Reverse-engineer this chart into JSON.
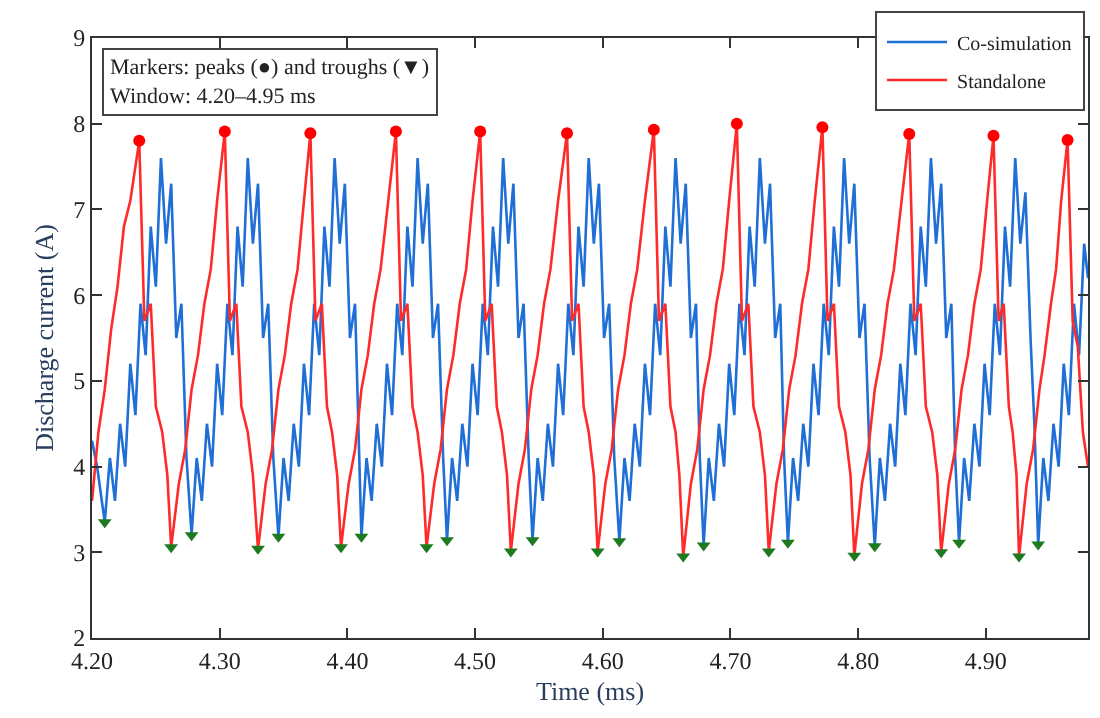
{
  "chart_data": {
    "type": "line",
    "xlabel": "Time (ms)",
    "ylabel": "Discharge current (A)",
    "xlim": [
      4.2,
      4.98
    ],
    "ylim": [
      2,
      9
    ],
    "xticks": [
      {
        "value": 4.2,
        "label": "4.20"
      },
      {
        "value": 4.3,
        "label": "4.30"
      },
      {
        "value": 4.4,
        "label": "4.40"
      },
      {
        "value": 4.5,
        "label": "4.50"
      },
      {
        "value": 4.6,
        "label": "4.60"
      },
      {
        "value": 4.7,
        "label": "4.70"
      },
      {
        "value": 4.8,
        "label": "4.80"
      },
      {
        "value": 4.9,
        "label": "4.90"
      }
    ],
    "yticks": [
      2,
      3,
      4,
      5,
      6,
      7,
      8,
      9
    ],
    "legend": "top right",
    "line_style": "solid",
    "annotations": [
      "Markers: peaks (●) and troughs (▼)",
      "Window: 4.20–4.95 ms"
    ],
    "series": [
      {
        "name": "Co-simulation",
        "color": "#1f6fd6",
        "x": [
          4.2,
          4.204,
          4.21,
          4.214,
          4.218,
          4.222,
          4.226,
          4.23,
          4.234,
          4.238,
          4.242,
          4.246,
          4.25,
          4.254,
          4.258,
          4.262,
          4.266,
          4.27,
          4.274,
          4.278,
          4.282,
          4.286,
          4.29,
          4.294,
          4.298,
          4.302,
          4.306,
          4.31,
          4.314,
          4.318,
          4.322,
          4.326,
          4.33,
          4.334,
          4.338,
          4.342,
          4.346,
          4.35,
          4.354,
          4.358,
          4.362,
          4.366,
          4.37,
          4.374,
          4.378,
          4.382,
          4.386,
          4.39,
          4.394,
          4.398,
          4.402,
          4.406,
          4.411,
          4.415,
          4.419,
          4.423,
          4.427,
          4.431,
          4.435,
          4.439,
          4.443,
          4.447,
          4.451,
          4.455,
          4.459,
          4.463,
          4.467,
          4.471,
          4.475,
          4.478,
          4.482,
          4.486,
          4.49,
          4.494,
          4.498,
          4.502,
          4.506,
          4.51,
          4.514,
          4.518,
          4.522,
          4.526,
          4.53,
          4.534,
          4.538,
          4.542,
          4.545,
          4.549,
          4.553,
          4.557,
          4.561,
          4.565,
          4.569,
          4.573,
          4.577,
          4.581,
          4.585,
          4.589,
          4.593,
          4.597,
          4.601,
          4.605,
          4.609,
          4.613,
          4.617,
          4.621,
          4.625,
          4.629,
          4.633,
          4.637,
          4.641,
          4.645,
          4.649,
          4.653,
          4.657,
          4.661,
          4.665,
          4.669,
          4.673,
          4.676,
          4.679,
          4.683,
          4.687,
          4.691,
          4.695,
          4.699,
          4.703,
          4.707,
          4.711,
          4.715,
          4.719,
          4.723,
          4.727,
          4.731,
          4.735,
          4.739,
          4.742,
          4.745,
          4.749,
          4.753,
          4.757,
          4.761,
          4.765,
          4.769,
          4.773,
          4.777,
          4.781,
          4.785,
          4.789,
          4.793,
          4.797,
          4.801,
          4.805,
          4.809,
          4.813,
          4.817,
          4.821,
          4.825,
          4.829,
          4.833,
          4.837,
          4.841,
          4.845,
          4.849,
          4.853,
          4.857,
          4.861,
          4.865,
          4.869,
          4.873,
          4.876,
          4.879,
          4.883,
          4.887,
          4.891,
          4.895,
          4.899,
          4.903,
          4.907,
          4.911,
          4.915,
          4.919,
          4.923,
          4.927,
          4.931,
          4.935,
          4.938,
          4.941,
          4.945,
          4.949,
          4.953,
          4.957,
          4.961,
          4.965,
          4.969,
          4.973,
          4.977,
          4.98
        ],
        "values": [
          4.3,
          4.0,
          3.35,
          4.1,
          3.6,
          4.5,
          4.0,
          5.2,
          4.6,
          5.9,
          5.3,
          6.8,
          6.1,
          7.6,
          6.6,
          7.3,
          5.5,
          5.9,
          4.1,
          3.2,
          4.1,
          3.6,
          4.5,
          4.0,
          5.2,
          4.6,
          5.9,
          5.3,
          6.8,
          6.1,
          7.6,
          6.6,
          7.3,
          5.5,
          5.9,
          4.1,
          3.18,
          4.1,
          3.6,
          4.5,
          4.0,
          5.2,
          4.6,
          5.9,
          5.3,
          6.8,
          6.1,
          7.6,
          6.6,
          7.3,
          5.5,
          5.9,
          3.18,
          4.1,
          3.6,
          4.5,
          4.0,
          5.2,
          4.6,
          5.9,
          5.3,
          6.8,
          6.1,
          7.6,
          6.6,
          7.3,
          5.5,
          5.9,
          4.1,
          3.14,
          4.1,
          3.6,
          4.5,
          4.0,
          5.2,
          4.6,
          5.9,
          5.3,
          6.8,
          6.1,
          7.6,
          6.6,
          7.3,
          5.5,
          5.9,
          4.1,
          3.14,
          4.1,
          3.6,
          4.5,
          4.0,
          5.2,
          4.6,
          5.9,
          5.3,
          6.8,
          6.1,
          7.6,
          6.6,
          7.3,
          5.5,
          5.9,
          4.1,
          3.13,
          4.1,
          3.6,
          4.5,
          4.0,
          5.2,
          4.6,
          5.9,
          5.3,
          6.8,
          6.1,
          7.6,
          6.6,
          7.3,
          5.5,
          5.9,
          4.1,
          3.08,
          4.1,
          3.6,
          4.5,
          4.0,
          5.2,
          4.6,
          5.9,
          5.3,
          6.8,
          6.1,
          7.6,
          6.6,
          7.3,
          5.5,
          5.9,
          4.1,
          3.11,
          4.1,
          3.6,
          4.5,
          4.0,
          5.2,
          4.6,
          5.9,
          5.3,
          6.8,
          6.1,
          7.6,
          6.6,
          7.3,
          5.5,
          5.9,
          4.1,
          3.07,
          4.1,
          3.6,
          4.5,
          4.0,
          5.2,
          4.6,
          5.9,
          5.3,
          6.8,
          6.1,
          7.6,
          6.6,
          7.3,
          5.5,
          5.9,
          4.1,
          3.11,
          4.1,
          3.6,
          4.5,
          4.0,
          5.2,
          4.6,
          5.9,
          5.3,
          6.8,
          6.1,
          7.6,
          6.6,
          7.2,
          5.5,
          4.5,
          3.09,
          4.1,
          3.6,
          4.5,
          4.0,
          5.2,
          4.6,
          5.9,
          5.3,
          6.6,
          6.2
        ]
      },
      {
        "name": "Standalone",
        "color": "#ff2a2a",
        "x": [
          4.2,
          4.205,
          4.21,
          4.215,
          4.22,
          4.225,
          4.23,
          4.237,
          4.241,
          4.246,
          4.25,
          4.255,
          4.259,
          4.262,
          4.268,
          4.273,
          4.278,
          4.283,
          4.288,
          4.293,
          4.298,
          4.304,
          4.308,
          4.313,
          4.317,
          4.322,
          4.326,
          4.33,
          4.336,
          4.341,
          4.346,
          4.351,
          4.356,
          4.361,
          4.366,
          4.371,
          4.375,
          4.38,
          4.384,
          4.388,
          4.392,
          4.395,
          4.401,
          4.406,
          4.411,
          4.416,
          4.421,
          4.426,
          4.432,
          4.438,
          4.442,
          4.447,
          4.451,
          4.455,
          4.459,
          4.462,
          4.468,
          4.473,
          4.478,
          4.483,
          4.488,
          4.493,
          4.498,
          4.504,
          4.508,
          4.513,
          4.517,
          4.521,
          4.525,
          4.528,
          4.534,
          4.539,
          4.544,
          4.549,
          4.554,
          4.559,
          4.565,
          4.572,
          4.576,
          4.581,
          4.585,
          4.589,
          4.593,
          4.596,
          4.602,
          4.607,
          4.612,
          4.617,
          4.622,
          4.627,
          4.633,
          4.64,
          4.644,
          4.649,
          4.653,
          4.657,
          4.66,
          4.663,
          4.669,
          4.674,
          4.679,
          4.684,
          4.689,
          4.694,
          4.699,
          4.705,
          4.709,
          4.714,
          4.718,
          4.723,
          4.727,
          4.73,
          4.736,
          4.741,
          4.746,
          4.751,
          4.756,
          4.761,
          4.766,
          4.772,
          4.776,
          4.781,
          4.785,
          4.79,
          4.794,
          4.797,
          4.803,
          4.808,
          4.813,
          4.818,
          4.823,
          4.828,
          4.834,
          4.84,
          4.844,
          4.849,
          4.853,
          4.858,
          4.862,
          4.865,
          4.871,
          4.876,
          4.881,
          4.886,
          4.891,
          4.896,
          4.901,
          4.906,
          4.91,
          4.914,
          4.918,
          4.921,
          4.924,
          4.926,
          4.932,
          4.937,
          4.942,
          4.946,
          4.951,
          4.955,
          4.959,
          4.964,
          4.968,
          4.972,
          4.976,
          4.98
        ],
        "values": [
          3.6,
          4.4,
          4.9,
          5.6,
          6.1,
          6.8,
          7.1,
          7.8,
          5.7,
          5.9,
          4.7,
          4.4,
          3.9,
          3.06,
          3.8,
          4.2,
          4.9,
          5.3,
          5.9,
          6.3,
          7.1,
          7.91,
          5.7,
          5.9,
          4.7,
          4.4,
          3.9,
          3.04,
          3.8,
          4.2,
          4.9,
          5.3,
          5.9,
          6.3,
          7.1,
          7.89,
          5.7,
          5.9,
          4.7,
          4.4,
          3.9,
          3.06,
          3.8,
          4.2,
          4.9,
          5.3,
          5.9,
          6.3,
          7.1,
          7.91,
          5.7,
          5.9,
          4.7,
          4.4,
          3.9,
          3.06,
          3.8,
          4.2,
          4.9,
          5.3,
          5.9,
          6.3,
          7.1,
          7.91,
          5.7,
          5.9,
          4.7,
          4.4,
          3.9,
          3.01,
          3.8,
          4.2,
          4.9,
          5.3,
          5.9,
          6.3,
          7.1,
          7.89,
          5.7,
          5.9,
          4.7,
          4.4,
          3.9,
          3.01,
          3.8,
          4.2,
          4.9,
          5.3,
          5.9,
          6.3,
          7.1,
          7.93,
          5.7,
          5.9,
          4.7,
          4.4,
          3.9,
          2.95,
          3.8,
          4.2,
          4.9,
          5.3,
          5.9,
          6.3,
          7.1,
          8.0,
          5.7,
          5.9,
          4.7,
          4.4,
          3.9,
          3.01,
          3.8,
          4.2,
          4.9,
          5.3,
          5.9,
          6.3,
          7.1,
          7.96,
          5.7,
          5.9,
          4.7,
          4.4,
          3.9,
          2.96,
          3.8,
          4.2,
          4.9,
          5.3,
          5.9,
          6.3,
          7.1,
          7.88,
          5.7,
          5.9,
          4.7,
          4.4,
          3.9,
          3.0,
          3.8,
          4.2,
          4.9,
          5.3,
          5.9,
          6.3,
          7.1,
          7.86,
          5.7,
          5.9,
          4.7,
          4.4,
          3.9,
          2.95,
          3.8,
          4.2,
          4.9,
          5.3,
          5.9,
          6.3,
          7.1,
          7.81,
          5.7,
          5.4,
          4.4,
          4.0
        ]
      },
      {
        "type": "scatter",
        "marker": "circle",
        "color": "#ff0000",
        "x": [
          4.237,
          4.304,
          4.371,
          4.438,
          4.504,
          4.572,
          4.64,
          4.705,
          4.772,
          4.84,
          4.906,
          4.964
        ],
        "values": [
          7.8,
          7.91,
          7.89,
          7.91,
          7.91,
          7.89,
          7.93,
          8.0,
          7.96,
          7.88,
          7.86,
          7.81
        ]
      },
      {
        "type": "scatter",
        "marker": "triangle",
        "color": "#1e7a1e",
        "x": [
          4.21,
          4.262,
          4.278,
          4.33,
          4.346,
          4.395,
          4.411,
          4.462,
          4.478,
          4.528,
          4.545,
          4.596,
          4.613,
          4.663,
          4.679,
          4.73,
          4.745,
          4.797,
          4.813,
          4.865,
          4.879,
          4.926,
          4.941
        ],
        "values": [
          3.35,
          3.06,
          3.2,
          3.04,
          3.18,
          3.06,
          3.18,
          3.06,
          3.14,
          3.01,
          3.14,
          3.01,
          3.13,
          2.95,
          3.08,
          3.01,
          3.11,
          2.96,
          3.07,
          3.0,
          3.11,
          2.95,
          3.09
        ]
      }
    ]
  }
}
